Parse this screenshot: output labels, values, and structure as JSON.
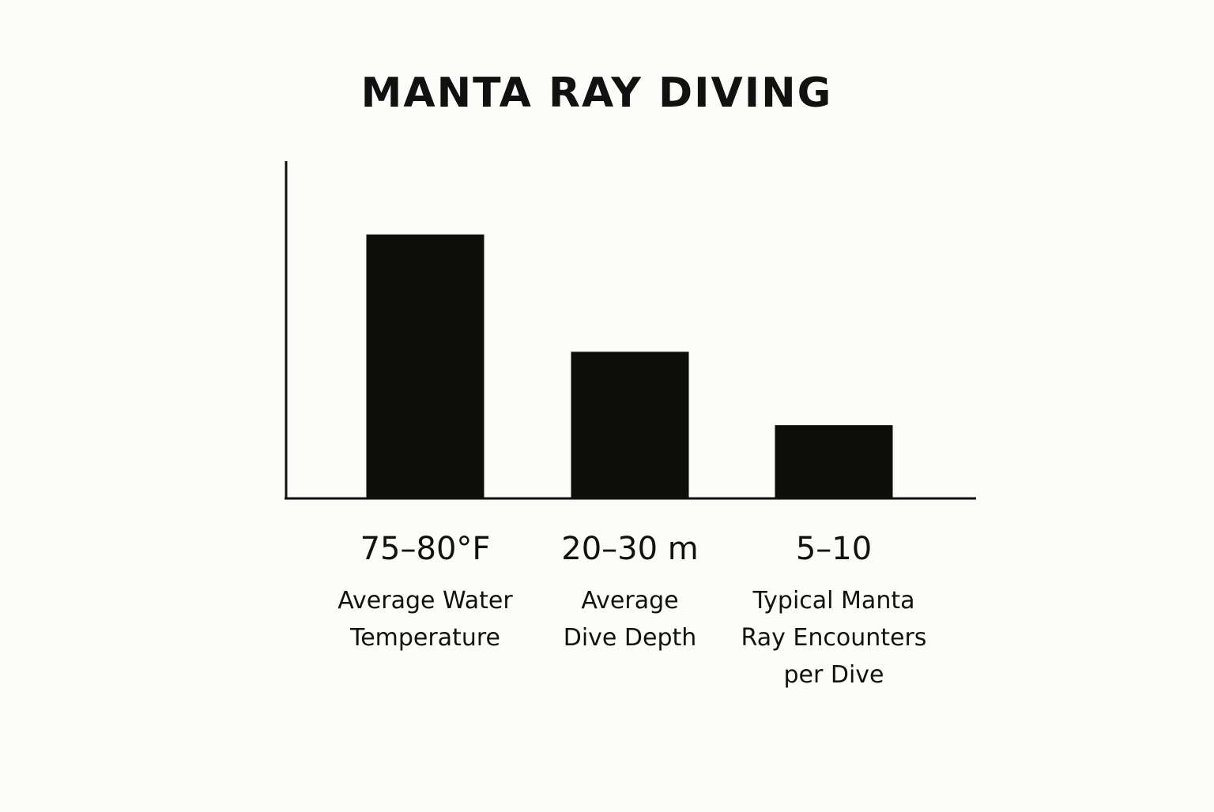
{
  "chart_data": {
    "type": "bar",
    "title": "MANTA RAY DIVING",
    "xlabel": "",
    "ylabel": "",
    "grid": false,
    "legend": "none",
    "bar_color": "#0d0d0a",
    "axis_color": "#111111",
    "ylim": [
      0,
      4.6
    ],
    "categories": [
      {
        "value_text": "75–80°F",
        "label_lines": [
          "Average Water",
          "Temperature"
        ]
      },
      {
        "value_text": "20–30 m",
        "label_lines": [
          "Average",
          "Dive Depth"
        ]
      },
      {
        "value_text": "5–10",
        "label_lines": [
          "Typical Manta",
          "Ray Encounters",
          "per Dive"
        ]
      }
    ],
    "values": [
      3.6,
      2.0,
      1.0
    ]
  }
}
